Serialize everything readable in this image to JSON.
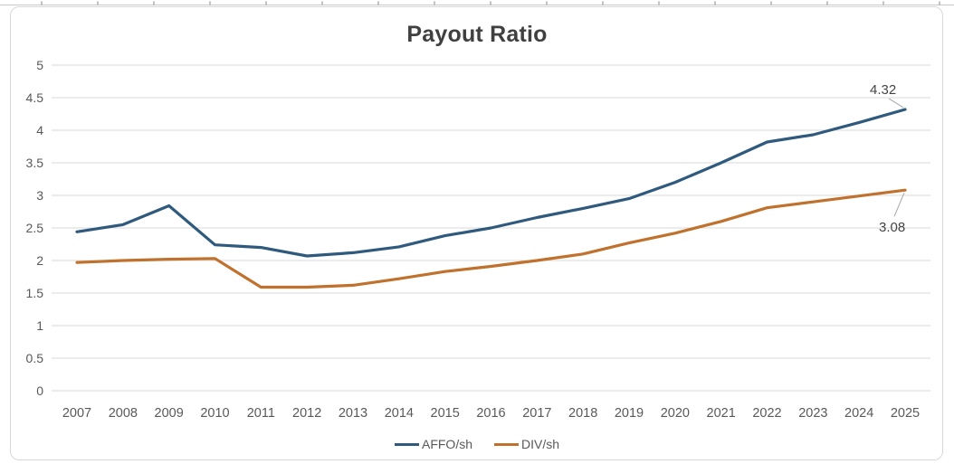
{
  "chart": {
    "title": "Payout Ratio"
  },
  "chart_data": {
    "type": "line",
    "title": "Payout Ratio",
    "categories": [
      "2007",
      "2008",
      "2009",
      "2010",
      "2011",
      "2012",
      "2013",
      "2014",
      "2015",
      "2016",
      "2017",
      "2018",
      "2019",
      "2020",
      "2021",
      "2022",
      "2023",
      "2024",
      "2025"
    ],
    "series": [
      {
        "name": "AFFO/sh",
        "color": "#2F5A7D",
        "values": [
          2.44,
          2.55,
          2.84,
          2.24,
          2.2,
          2.07,
          2.12,
          2.21,
          2.38,
          2.5,
          2.66,
          2.8,
          2.95,
          3.2,
          3.5,
          3.82,
          3.93,
          4.12,
          4.32
        ],
        "end_label": "4.32"
      },
      {
        "name": "DIV/sh",
        "color": "#C1712E",
        "values": [
          1.97,
          2.0,
          2.02,
          2.03,
          1.59,
          1.59,
          1.62,
          1.72,
          1.83,
          1.91,
          2.0,
          2.1,
          2.27,
          2.42,
          2.6,
          2.81,
          2.9,
          2.99,
          3.08
        ],
        "end_label": "3.08"
      }
    ],
    "xlabel": "",
    "ylabel": "",
    "ylim": [
      0,
      5
    ],
    "ytick_step": 0.5,
    "ytick_labels": [
      "0",
      "0.5",
      "1",
      "1.5",
      "2",
      "2.5",
      "3",
      "3.5",
      "4",
      "4.5",
      "5"
    ],
    "grid": true,
    "legend_position": "bottom",
    "colors": {
      "grid": "#d9d9d9",
      "axis_text": "#595959",
      "title_text": "#404040",
      "leader_line": "#a6a6a6"
    }
  }
}
